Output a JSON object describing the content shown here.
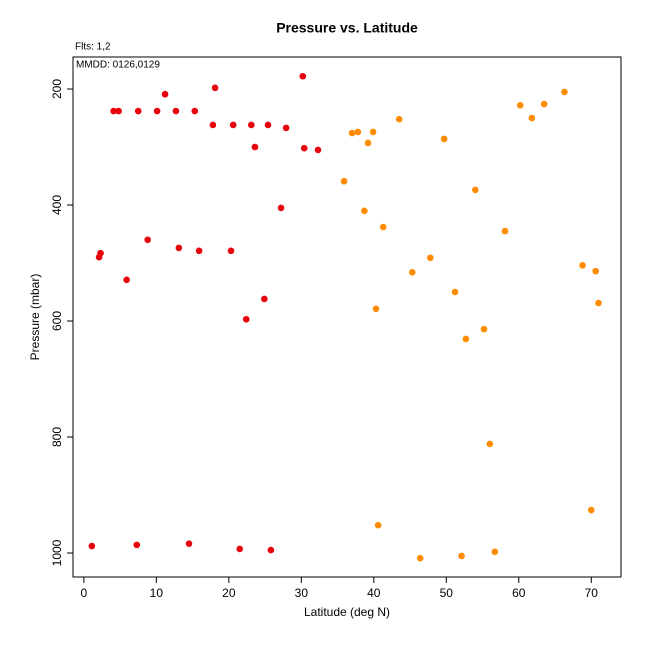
{
  "chart_data": {
    "type": "scatter",
    "title": "Pressure vs. Latitude",
    "subtitle": "Flts: 1,2",
    "annotation": "MMDD: 0126,0129",
    "x_label": "Latitude (deg N)",
    "y_label": "Pressure (mbar)",
    "xlim": [
      -1.5,
      74.1
    ],
    "ylim": [
      1041.4,
      144.8
    ],
    "y_reversed": true,
    "xticks": [
      0,
      10,
      20,
      30,
      40,
      50,
      60,
      70
    ],
    "yticks": [
      200,
      400,
      600,
      800,
      1000
    ],
    "grid": false,
    "series": [
      {
        "color": "#e8000b",
        "x": [
          1.1,
          2.1,
          2.3,
          4.1,
          4.8,
          5.9,
          7.3,
          7.5,
          8.8,
          10.1,
          11.2,
          12.7,
          13.1,
          14.5,
          15.3,
          15.9,
          17.8,
          18.1,
          20.3,
          20.6,
          21.5,
          22.4,
          23.1,
          23.6,
          24.9,
          25.4,
          25.8,
          27.2,
          27.9,
          30.2,
          30.4,
          32.3
        ],
        "values": [
          988,
          490,
          483,
          238,
          238,
          529,
          986,
          238,
          460,
          238,
          209,
          238,
          474,
          984,
          238,
          479,
          262,
          198,
          479,
          262,
          993,
          597,
          262,
          300,
          562,
          262,
          995,
          405,
          267,
          178,
          302,
          305
        ]
      },
      {
        "color": "#ff8c00",
        "x": [
          35.9,
          37.0,
          37.8,
          38.7,
          39.2,
          39.9,
          40.3,
          40.6,
          41.3,
          43.5,
          45.3,
          46.4,
          47.8,
          49.7,
          51.2,
          52.1,
          52.7,
          54.0,
          55.2,
          56.0,
          56.7,
          58.1,
          60.2,
          61.8,
          63.5,
          66.3,
          68.8,
          70.0,
          70.6,
          71.0
        ],
        "values": [
          359,
          276,
          274,
          410,
          293,
          274,
          579,
          952,
          438,
          252,
          516,
          1009,
          491,
          286,
          550,
          1005,
          631,
          374,
          614,
          812,
          998,
          445,
          228,
          250,
          226,
          205,
          504,
          926,
          514,
          569
        ]
      }
    ]
  }
}
